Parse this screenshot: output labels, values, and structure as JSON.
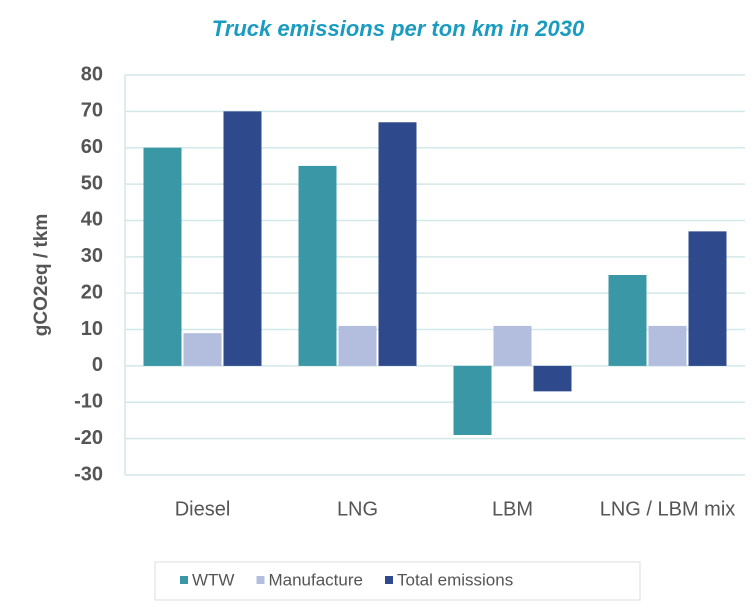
{
  "chart_data": {
    "type": "bar",
    "title": "Truck emissions per ton km in 2030",
    "y_label": "gCO2eq / tkm",
    "categories": [
      "Diesel",
      "LNG",
      "LBM",
      "LNG / LBM mix"
    ],
    "series": [
      {
        "name": "WTW",
        "color": "#3a97a5",
        "values": [
          60,
          55,
          -19,
          25
        ]
      },
      {
        "name": "Manufacture",
        "color": "#b3bedf",
        "values": [
          9,
          11,
          11,
          11
        ]
      },
      {
        "name": "Total emissions",
        "color": "#2e4a8c",
        "values": [
          70,
          67,
          -7,
          37
        ]
      }
    ],
    "ylim": [
      -30,
      80
    ],
    "yticks": [
      -30,
      -20,
      -10,
      0,
      10,
      20,
      30,
      40,
      50,
      60,
      70,
      80
    ],
    "grid": true
  }
}
